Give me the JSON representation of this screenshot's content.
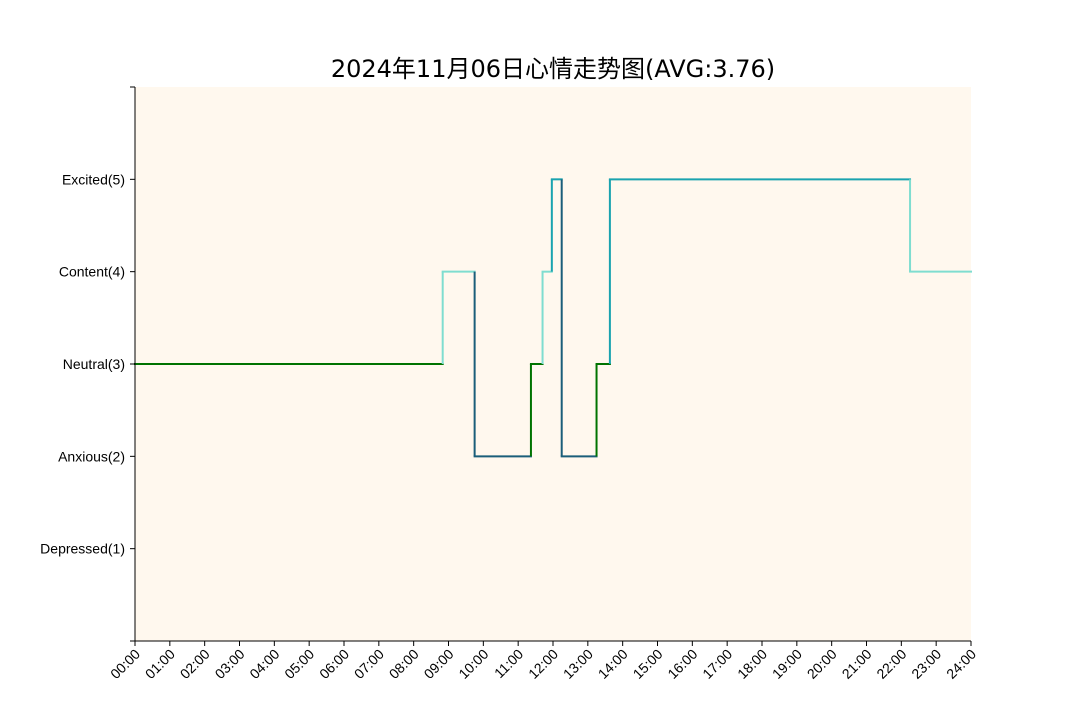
{
  "colors": {
    "plot_background": "#FFF8EE",
    "level_colors": {
      "1": "#4B0082",
      "2": "#1B5E7A",
      "3": "#007300",
      "4": "#7FDDD0",
      "5": "#1AA3AF"
    }
  },
  "chart_data": {
    "type": "line",
    "title": "2024年11月06日心情走势图(AVG:3.76)",
    "xlabel": "",
    "ylabel": "",
    "xlim": [
      "00:00",
      "24:00"
    ],
    "ylim": [
      0,
      6
    ],
    "grid": false,
    "y_ticks": [
      {
        "value": 1,
        "label": "Depressed(1)"
      },
      {
        "value": 2,
        "label": "Anxious(2)"
      },
      {
        "value": 3,
        "label": "Neutral(3)"
      },
      {
        "value": 4,
        "label": "Content(4)"
      },
      {
        "value": 5,
        "label": "Excited(5)"
      }
    ],
    "x_ticks": [
      "00:00",
      "01:00",
      "02:00",
      "03:00",
      "04:00",
      "05:00",
      "06:00",
      "07:00",
      "08:00",
      "09:00",
      "10:00",
      "11:00",
      "12:00",
      "13:00",
      "14:00",
      "15:00",
      "16:00",
      "17:00",
      "18:00",
      "19:00",
      "20:00",
      "21:00",
      "22:00",
      "23:00",
      "24:00"
    ],
    "steps": [
      {
        "start": "00:00",
        "end": "08:50",
        "mood": 3
      },
      {
        "start": "08:50",
        "end": "09:45",
        "mood": 4
      },
      {
        "start": "09:45",
        "end": "11:22",
        "mood": 2
      },
      {
        "start": "11:22",
        "end": "11:42",
        "mood": 3
      },
      {
        "start": "11:42",
        "end": "11:58",
        "mood": 4
      },
      {
        "start": "11:58",
        "end": "12:15",
        "mood": 5
      },
      {
        "start": "12:15",
        "end": "13:15",
        "mood": 2
      },
      {
        "start": "13:15",
        "end": "13:38",
        "mood": 3
      },
      {
        "start": "13:38",
        "end": "22:15",
        "mood": 5
      },
      {
        "start": "22:15",
        "end": "24:00",
        "mood": 4
      }
    ]
  }
}
